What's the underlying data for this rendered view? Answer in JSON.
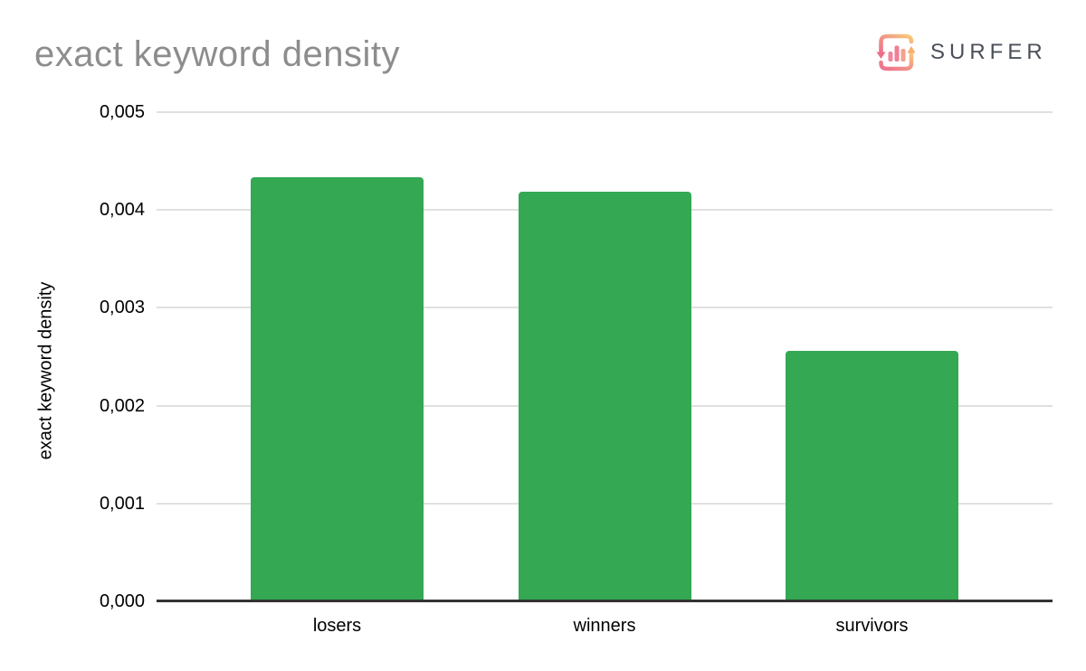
{
  "title": "exact keyword density",
  "logo": {
    "brand": "SURFER",
    "icon": "surfer-refresh-bars-icon",
    "text_color": "#4b4f58",
    "gradient_start": "#ed6f8f",
    "gradient_mid": "#f29a86",
    "gradient_end": "#f9ca7b"
  },
  "chart_data": {
    "type": "bar",
    "title": "exact keyword density",
    "categories": [
      "losers",
      "winners",
      "survivors"
    ],
    "values": [
      0.00433,
      0.00419,
      0.00256
    ],
    "xlabel": "",
    "ylabel": "exact keyword density",
    "ylim": [
      0,
      0.005
    ],
    "ytick_interval": 0.001,
    "ytick_labels": [
      "0,000",
      "0,001",
      "0,002",
      "0,003",
      "0,004",
      "0,005"
    ],
    "decimal_separator": ",",
    "bar_color": "#34a853",
    "gridline_color": "#e0e0e0",
    "axis_line_color": "#333333",
    "tick_label_color": "#000000",
    "title_color": "#8d8d8d",
    "grid": true,
    "legend": "none"
  }
}
